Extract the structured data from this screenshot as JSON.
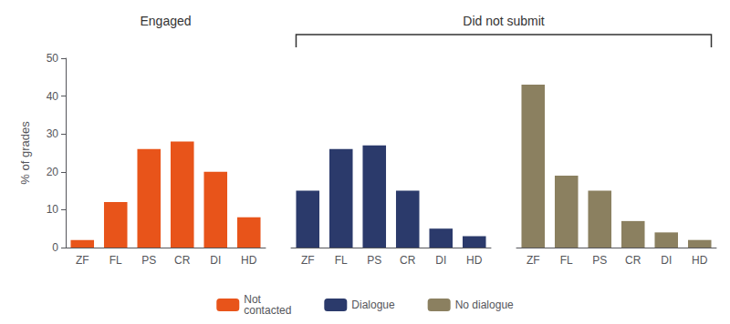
{
  "chart_data": {
    "type": "bar",
    "categories": [
      "ZF",
      "FL",
      "PS",
      "CR",
      "DI",
      "HD"
    ],
    "series": [
      {
        "name": "Not\ncontacted",
        "color": "#E8541A",
        "values": [
          2,
          12,
          26,
          28,
          20,
          8
        ]
      },
      {
        "name": "Dialogue",
        "color": "#2B3A6B",
        "values": [
          15,
          26,
          27,
          15,
          5,
          3
        ]
      },
      {
        "name": "No dialogue",
        "color": "#8B8060",
        "values": [
          43,
          19,
          15,
          7,
          4,
          2
        ]
      }
    ],
    "ylabel": "% of grades",
    "ylim": [
      0,
      50
    ],
    "yticks": [
      0,
      10,
      20,
      30,
      40,
      50
    ],
    "annotations": [
      "Engaged",
      "Did not submit"
    ],
    "grid": false,
    "legend": "bottom"
  }
}
